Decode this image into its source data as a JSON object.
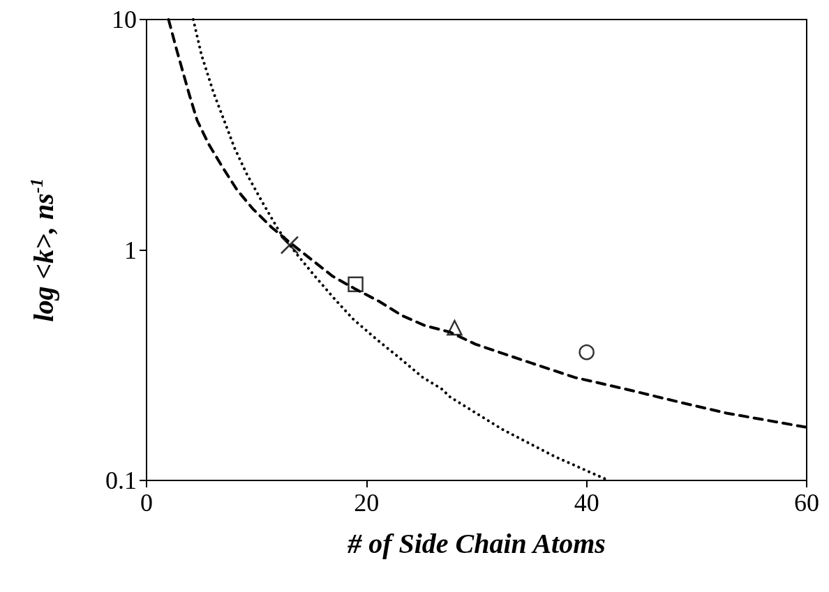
{
  "chart_data": {
    "type": "line",
    "xlabel": "# of Side Chain Atoms",
    "ylabel": "log <k>, ns$^{-1}$",
    "log": "y",
    "grid": false,
    "xlim": [
      0,
      60
    ],
    "xticks": [
      0,
      20,
      40,
      60
    ],
    "ylim": [
      0.1,
      10
    ],
    "yticks": [
      0.1,
      1,
      10
    ],
    "series": [
      {
        "type": "line",
        "line_style": "dashed",
        "marker": "none",
        "color": "#000000",
        "x": [
          2.0,
          2.7,
          3.9,
          4.6,
          5.65,
          6.9,
          8.2,
          9.65,
          11.4,
          13,
          16.9,
          18.9,
          21.1,
          23.2,
          25.3,
          27.6,
          29.9,
          34.4,
          38.9,
          43.4,
          48.2,
          52.7,
          60
        ],
        "values": [
          10,
          7.5,
          4.7,
          3.65,
          2.88,
          2.29,
          1.83,
          1.51,
          1.25,
          1.08,
          0.77,
          0.68,
          0.6,
          0.52,
          0.47,
          0.44,
          0.39,
          0.33,
          0.28,
          0.25,
          0.22,
          0.196,
          0.17
        ]
      },
      {
        "type": "line",
        "line_style": "dotted",
        "marker": "none",
        "color": "#000000",
        "x": [
          4.25,
          5.0,
          6.1,
          7.05,
          8.0,
          9.1,
          10.5,
          12.0,
          13.5,
          15.2,
          17.0,
          18.8,
          20.9,
          23.0,
          25.1,
          26.8,
          27.6,
          32.3,
          37.1,
          42.0
        ],
        "values": [
          10,
          7.0,
          4.8,
          3.65,
          2.77,
          2.14,
          1.62,
          1.22,
          0.98,
          0.78,
          0.62,
          0.5,
          0.41,
          0.34,
          0.28,
          0.25,
          0.23,
          0.167,
          0.127,
          0.1
        ]
      },
      {
        "type": "scatter",
        "marker": "cross",
        "color": "#000000",
        "x": [
          13
        ],
        "values": [
          1.05
        ]
      },
      {
        "type": "scatter",
        "marker": "square",
        "color": "#000000",
        "x": [
          19
        ],
        "values": [
          0.71
        ]
      },
      {
        "type": "scatter",
        "marker": "triangle",
        "color": "#000000",
        "x": [
          28
        ],
        "values": [
          0.46
        ]
      },
      {
        "type": "scatter",
        "marker": "circle",
        "color": "#000000",
        "x": [
          40
        ],
        "values": [
          0.36
        ]
      }
    ]
  }
}
